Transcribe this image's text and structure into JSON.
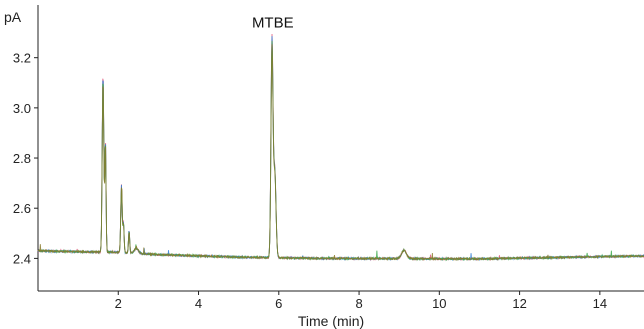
{
  "chart_data": {
    "type": "line",
    "title": "",
    "xlabel": "Time (min)",
    "ylabel": "pA",
    "xlim": [
      0,
      15.1
    ],
    "ylim": [
      2.27,
      3.41
    ],
    "x_ticks": [
      2,
      4,
      6,
      8,
      10,
      12,
      14
    ],
    "x_tick_labels": [
      "2",
      "4",
      "6",
      "8",
      "10",
      "12",
      "14"
    ],
    "y_ticks": [
      2.4,
      2.6,
      2.8,
      3.0,
      3.2
    ],
    "y_tick_labels": [
      "2.4",
      "2.6",
      "2.8",
      "3.0",
      "3.2"
    ],
    "grid": false,
    "legend": "none",
    "annotations": [
      {
        "text": "MTBE",
        "x": 5.85,
        "y": 3.28
      }
    ],
    "series_colors": [
      "#e0567a",
      "#2a7bd6",
      "#3aa84a",
      "#8a7a2a"
    ],
    "peaks": [
      {
        "x": 1.62,
        "height": 0.72,
        "width": 0.02
      },
      {
        "x": 1.68,
        "height": 0.45,
        "width": 0.015
      },
      {
        "x": 2.08,
        "height": 0.27,
        "width": 0.018
      },
      {
        "x": 2.13,
        "height": 0.12,
        "width": 0.015
      },
      {
        "x": 2.27,
        "height": 0.09,
        "width": 0.015
      },
      {
        "x": 2.45,
        "height": 0.02,
        "width": 0.05
      },
      {
        "x": 5.83,
        "height": 0.87,
        "width": 0.025
      },
      {
        "x": 5.9,
        "height": 0.35,
        "width": 0.03
      },
      {
        "x": 9.12,
        "height": 0.035,
        "width": 0.06
      }
    ],
    "baseline": [
      {
        "x": 0.0,
        "y": 2.43
      },
      {
        "x": 1.5,
        "y": 2.425
      },
      {
        "x": 1.9,
        "y": 2.425
      },
      {
        "x": 3.0,
        "y": 2.415
      },
      {
        "x": 5.0,
        "y": 2.405
      },
      {
        "x": 7.0,
        "y": 2.4
      },
      {
        "x": 11.0,
        "y": 2.398
      },
      {
        "x": 15.1,
        "y": 2.41
      }
    ]
  }
}
